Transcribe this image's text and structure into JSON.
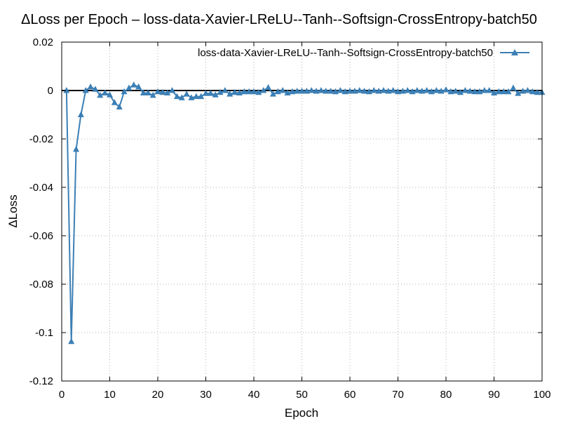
{
  "chart_data": {
    "type": "line",
    "title": "ΔLoss per Epoch – loss-data-Xavier-LReLU--Tanh--Softsign-CrossEntropy-batch50",
    "xlabel": "Epoch",
    "ylabel": "ΔLoss",
    "xlim": [
      0,
      100
    ],
    "ylim": [
      -0.12,
      0.02
    ],
    "xticks": [
      0,
      10,
      20,
      30,
      40,
      50,
      60,
      70,
      80,
      90,
      100
    ],
    "yticks": [
      0.02,
      0,
      -0.02,
      -0.04,
      -0.06,
      -0.08,
      -0.1,
      -0.12
    ],
    "xtick_labels": [
      "0",
      "10",
      "20",
      "30",
      "40",
      "50",
      "60",
      "70",
      "80",
      "90",
      "100"
    ],
    "ytick_labels": [
      "0.02",
      "0",
      "-0.02",
      "-0.04",
      "-0.06",
      "-0.08",
      "-0.1",
      "-0.12"
    ],
    "grid": true,
    "zero_line": true,
    "legend_position": "top-right",
    "series": [
      {
        "name": "loss-data-Xavier-LReLU--Tanh--Softsign-CrossEntropy-batch50",
        "color": "#3b7fb5",
        "marker": "triangle",
        "x": [
          1,
          2,
          3,
          4,
          5,
          6,
          7,
          8,
          9,
          10,
          11,
          12,
          13,
          14,
          15,
          16,
          17,
          18,
          19,
          20,
          21,
          22,
          23,
          24,
          25,
          26,
          27,
          28,
          29,
          30,
          31,
          32,
          33,
          34,
          35,
          36,
          37,
          38,
          39,
          40,
          41,
          42,
          43,
          44,
          45,
          46,
          47,
          48,
          49,
          50,
          51,
          52,
          53,
          54,
          55,
          56,
          57,
          58,
          59,
          60,
          61,
          62,
          63,
          64,
          65,
          66,
          67,
          68,
          69,
          70,
          71,
          72,
          73,
          74,
          75,
          76,
          77,
          78,
          79,
          80,
          81,
          82,
          83,
          84,
          85,
          86,
          87,
          88,
          89,
          90,
          91,
          92,
          93,
          94,
          95,
          96,
          97,
          98,
          99,
          100
        ],
        "values": [
          0.0,
          -0.1037,
          -0.0243,
          -0.01,
          0.0,
          0.0015,
          0.0005,
          -0.002,
          -0.001,
          -0.0018,
          -0.005,
          -0.0068,
          -0.0005,
          0.001,
          0.0023,
          0.0015,
          -0.001,
          -0.001,
          -0.002,
          -0.0005,
          -0.0008,
          -0.001,
          0.0,
          -0.0025,
          -0.003,
          -0.0015,
          -0.003,
          -0.0025,
          -0.0025,
          -0.0012,
          -0.0012,
          -0.0018,
          -0.0008,
          0.0,
          -0.0015,
          -0.0008,
          -0.001,
          -0.0005,
          -0.0005,
          -0.0005,
          -0.0008,
          0.0,
          0.0012,
          -0.0015,
          -0.0005,
          0.0,
          -0.001,
          -0.0005,
          -0.0003,
          -0.0003,
          -0.0003,
          0.0,
          -0.0003,
          0.0,
          -0.0003,
          -0.0003,
          -0.0005,
          0.0,
          -0.0005,
          -0.0003,
          -0.0003,
          0.0,
          -0.0003,
          -0.0005,
          0.0,
          -0.0003,
          0.0,
          -0.0003,
          0.0,
          -0.0005,
          -0.0003,
          0.0,
          -0.0005,
          0.0,
          -0.0003,
          0.0,
          -0.0005,
          0.0,
          -0.0003,
          0.0003,
          -0.0005,
          -0.0003,
          -0.0008,
          0.0,
          -0.0003,
          -0.0005,
          -0.0005,
          0.0,
          0.0,
          -0.001,
          -0.0005,
          -0.0005,
          -0.0005,
          0.001,
          -0.0012,
          -0.0003,
          0.0,
          -0.0005,
          -0.0008,
          -0.0008
        ]
      }
    ]
  }
}
